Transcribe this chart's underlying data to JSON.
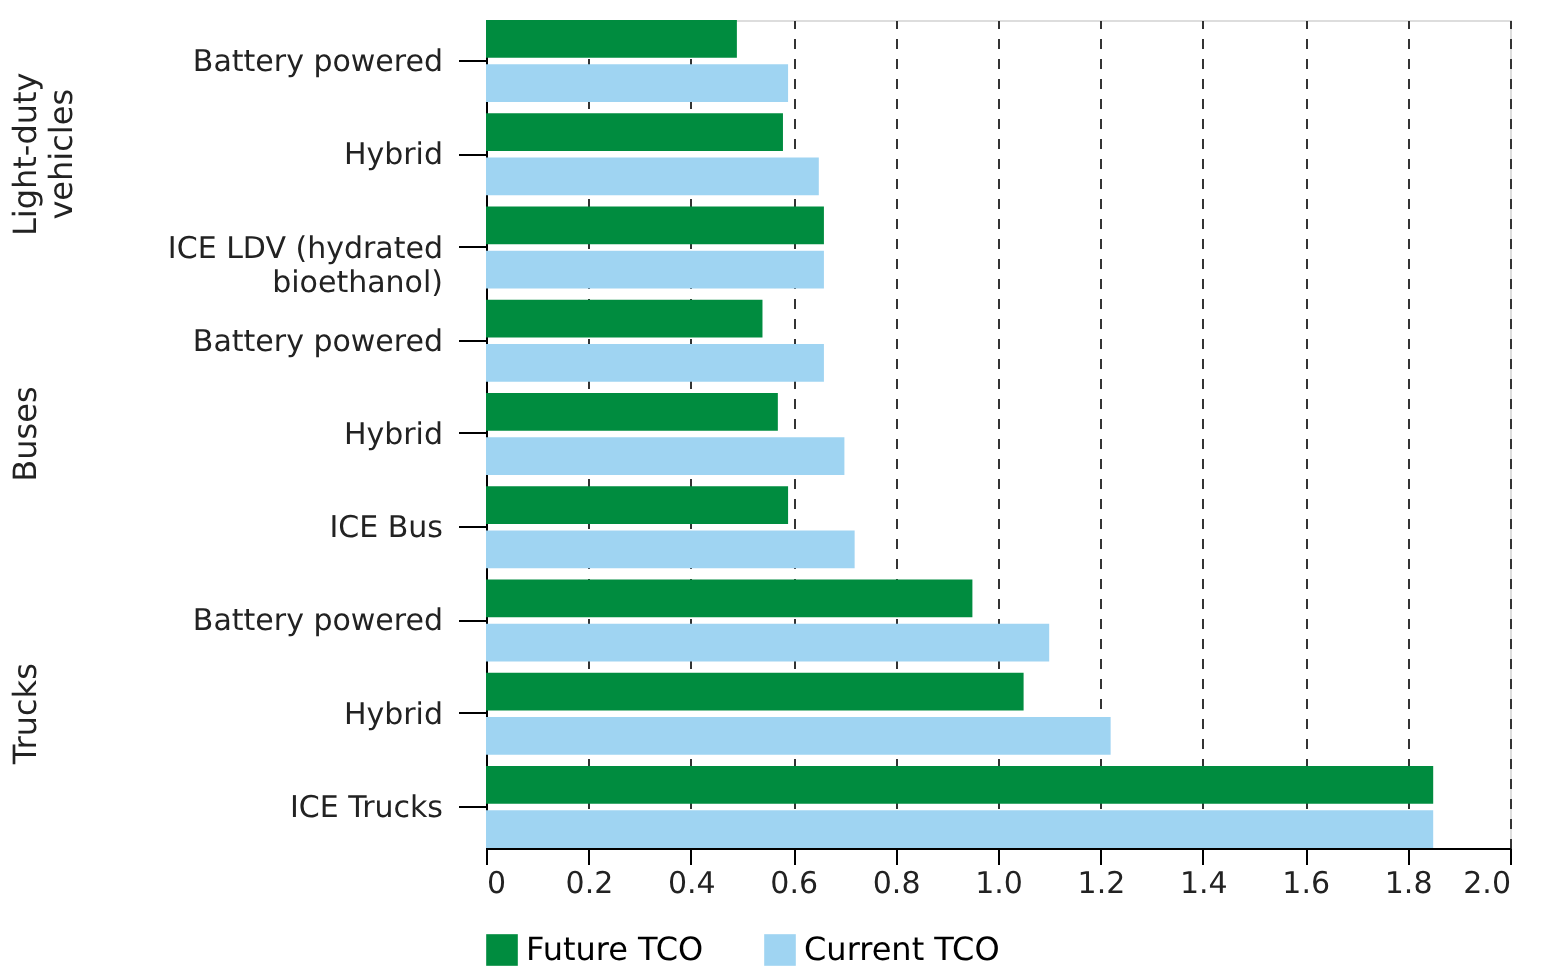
{
  "chart_data": {
    "type": "bar",
    "orientation": "horizontal",
    "categories": [
      "Battery powered",
      "Hybrid",
      "ICE LDV (hydrated bioethanol)",
      "Battery powered",
      "Hybrid",
      "ICE Bus",
      "Battery powered",
      "Hybrid",
      "ICE Trucks"
    ],
    "series": [
      {
        "name": "Future TCO",
        "color": "#008c3f",
        "values": [
          0.49,
          0.58,
          0.66,
          0.54,
          0.57,
          0.59,
          0.95,
          1.05,
          1.85
        ]
      },
      {
        "name": "Current TCO",
        "color": "#9fd4f2",
        "values": [
          0.59,
          0.65,
          0.66,
          0.66,
          0.7,
          0.72,
          1.1,
          1.22,
          1.85
        ]
      }
    ],
    "annotations": [
      "Light-duty vehicles",
      "Buses",
      "Trucks"
    ],
    "xlim": [
      0,
      2.0
    ],
    "xticks": [
      0,
      0.2,
      0.4,
      0.6,
      0.8,
      {
        "value": 1.0,
        "label": "1.0"
      },
      1.2,
      1.4,
      1.6,
      1.8,
      {
        "value": 2.0,
        "label": "2.0"
      }
    ],
    "grid": "x",
    "legend": "bottom"
  }
}
